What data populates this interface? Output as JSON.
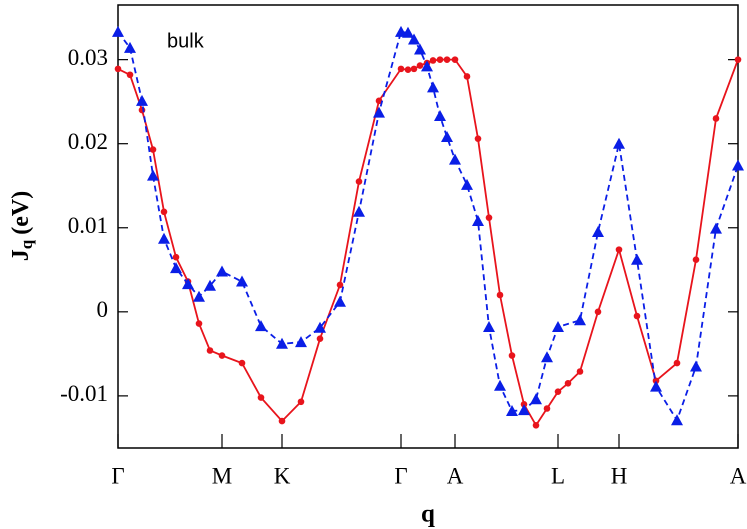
{
  "chart_data": {
    "type": "line",
    "annotation": "bulk",
    "y_label": "J",
    "y_label_subscript": "q",
    "y_label_unit": "(eV)",
    "x_label": "q",
    "xlim": [
      0,
      620
    ],
    "ylim": [
      -0.0162,
      0.0365
    ],
    "xticks": [
      {
        "value": 0,
        "label": "Γ"
      },
      {
        "value": 104,
        "label": "M"
      },
      {
        "value": 164,
        "label": "K"
      },
      {
        "value": 283,
        "label": "Γ"
      },
      {
        "value": 337,
        "label": "A"
      },
      {
        "value": 440,
        "label": "L"
      },
      {
        "value": 501,
        "label": "H"
      },
      {
        "value": 620,
        "label": "A"
      }
    ],
    "yticks": [
      -0.01,
      0,
      0.01,
      0.02,
      0.03
    ],
    "series": [
      {
        "color": "#e8141c",
        "marker": "circle",
        "dashed": false,
        "x": [
          0,
          12,
          24,
          35,
          46,
          58,
          70,
          81,
          92,
          104,
          124,
          143,
          164,
          183,
          202,
          222,
          241,
          261,
          283,
          290,
          296,
          302,
          309,
          315,
          322,
          329,
          337,
          349,
          360,
          371,
          382,
          394,
          406,
          418,
          429,
          440,
          450,
          462,
          480,
          501,
          519,
          538,
          559,
          578,
          598,
          620
        ],
        "values": [
          0.0289,
          0.0282,
          0.024,
          0.0193,
          0.0119,
          0.0065,
          0.0036,
          -0.0014,
          -0.0046,
          -0.0052,
          -0.0061,
          -0.0102,
          -0.013,
          -0.0107,
          -0.0032,
          0.0032,
          0.0155,
          0.0251,
          0.0289,
          0.0288,
          0.0289,
          0.0293,
          0.0296,
          0.0299,
          0.03,
          0.03,
          0.03,
          0.028,
          0.0206,
          0.0112,
          0.002,
          -0.0052,
          -0.011,
          -0.0135,
          -0.0115,
          -0.0095,
          -0.0085,
          -0.0071,
          0,
          0.0074,
          -0.0005,
          -0.0082,
          -0.0061,
          0.0062,
          0.023,
          0.03
        ]
      },
      {
        "color": "#0a1ee6",
        "marker": "triangle",
        "dashed": true,
        "x": [
          0,
          12,
          24,
          35,
          46,
          58,
          70,
          81,
          92,
          104,
          124,
          143,
          164,
          183,
          202,
          222,
          241,
          261,
          283,
          290,
          296,
          302,
          309,
          315,
          322,
          329,
          337,
          349,
          360,
          371,
          382,
          394,
          406,
          418,
          429,
          440,
          462,
          480,
          501,
          519,
          538,
          559,
          578,
          598,
          620
        ],
        "values": [
          0.0333,
          0.0314,
          0.0251,
          0.0162,
          0.0087,
          0.0052,
          0.0033,
          0.0018,
          0.0031,
          0.0048,
          0.0036,
          -0.0017,
          -0.0038,
          -0.0036,
          -0.0019,
          0.0012,
          0.0119,
          0.0237,
          0.0333,
          0.0332,
          0.0324,
          0.0312,
          0.0292,
          0.0267,
          0.0233,
          0.0208,
          0.0181,
          0.0151,
          0.0108,
          -0.0018,
          -0.0088,
          -0.0118,
          -0.0117,
          -0.0104,
          -0.0054,
          -0.0018,
          -0.001,
          0.0095,
          0.02,
          0.0062,
          -0.0089,
          -0.0129,
          -0.0065,
          0.0099,
          0.0174
        ]
      }
    ]
  }
}
